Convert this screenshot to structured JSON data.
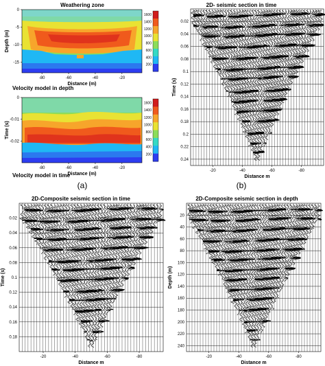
{
  "panel_labels": [
    "(a)",
    "(b)"
  ],
  "chart_data": [
    {
      "type": "heatmap",
      "title": "Weathering zone",
      "xlabel": "Distance (m)",
      "ylabel": "Depth (m)",
      "xticks": [
        "-80",
        "-60",
        "-40",
        "-20"
      ],
      "yticks": [
        "0",
        "-5",
        "-10",
        "-15"
      ],
      "xlim": [
        -95,
        -5
      ],
      "ylim": [
        -18,
        0
      ],
      "colorbar_ticks": [
        "1600",
        "1400",
        "1200",
        "1000",
        "800",
        "600",
        "400",
        "200"
      ],
      "colorbar_range": [
        0,
        1700
      ],
      "colors": [
        "#2d3df0",
        "#21b7f5",
        "#36d9c4",
        "#8cdc5a",
        "#e9e233",
        "#f7a52b",
        "#f05a1c",
        "#d01d1d"
      ]
    },
    {
      "type": "heatmap",
      "title": "Velocity model in depth",
      "xlabel": "Distance (m)",
      "ylabel": "Time (s)",
      "xticks": [
        "-80",
        "-60",
        "-40",
        "-20"
      ],
      "yticks": [
        "0",
        "-0.01",
        "-0.02"
      ],
      "xlim": [
        -95,
        -5
      ],
      "ylim": [
        -0.03,
        0
      ],
      "colorbar_ticks": [
        "1600",
        "1400",
        "1200",
        "1000",
        "800",
        "600",
        "400",
        "200"
      ],
      "colorbar_range": [
        0,
        1700
      ]
    },
    {
      "type": "seismic",
      "title": "2D- seismic section in time",
      "xlabel": "Distance m",
      "ylabel": "Time (s)",
      "xticks": [
        "-20",
        "-40",
        "-60",
        "-80"
      ],
      "yticks": [
        "0.02",
        "0.04",
        "0.06",
        "0.08",
        "0.1",
        "0.12",
        "0.14",
        "0.16",
        "0.18",
        "0.2",
        "0.22",
        "0.24"
      ],
      "xlim": [
        -5,
        -95
      ],
      "ylim": [
        0,
        0.25
      ]
    },
    {
      "type": "seismic",
      "title": "2D-Composite seismic section in time",
      "xlabel": "Distance m",
      "ylabel": "Time (s)",
      "xticks": [
        "-20",
        "-40",
        "-60",
        "-80"
      ],
      "yticks": [
        "0.02",
        "0.04",
        "0.06",
        "0.08",
        "0.1",
        "0.12",
        "0.14",
        "0.16",
        "0.18"
      ],
      "xlim": [
        -5,
        -95
      ],
      "ylim": [
        0,
        0.2
      ]
    },
    {
      "type": "seismic",
      "title": "2D-Composite seismic section in depth",
      "xlabel": "Distance m",
      "ylabel": "Depth (m)",
      "xticks": [
        "-20",
        "-40",
        "-60",
        "-80"
      ],
      "yticks": [
        "20",
        "40",
        "60",
        "80",
        "100",
        "120",
        "140",
        "160",
        "180",
        "200",
        "220",
        "240"
      ],
      "xlim": [
        -5,
        -95
      ],
      "ylim": [
        0,
        250
      ]
    }
  ],
  "footer_title": "Velocity model in time"
}
